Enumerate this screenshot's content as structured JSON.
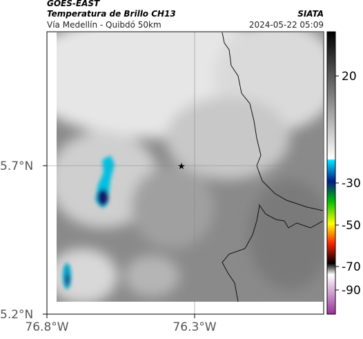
{
  "header": {
    "source": "GOES-EAST",
    "product": "Temperatura de Brillo CH13",
    "subtitle": "Vía Medellín - Quibdó 50km",
    "org": "SIATA",
    "datetime": "2024-05-22 05:09"
  },
  "map": {
    "lat_ticks": [
      "5.7°N",
      "5.2°N"
    ],
    "lon_ticks": [
      "76.8°W",
      "76.3°W"
    ]
  },
  "colorbar": {
    "ticks": [
      20,
      -30,
      -50,
      -70,
      -90
    ]
  }
}
